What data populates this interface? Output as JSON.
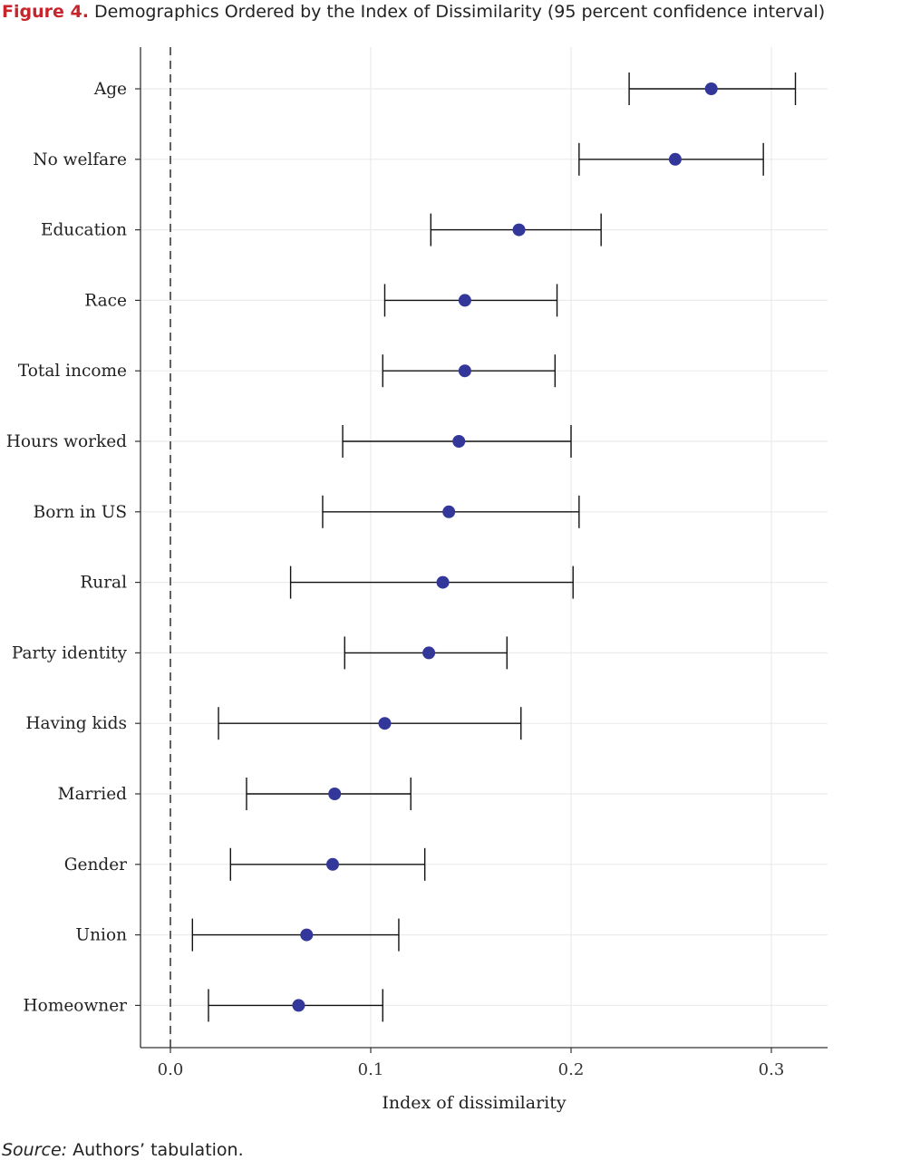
{
  "figure": {
    "label": "Figure 4.",
    "title": "Demographics Ordered by the Index of Dissimilarity (95 percent confidence interval)"
  },
  "source": {
    "label": "Source:",
    "text": "Authors’ tabulation."
  },
  "chart_data": {
    "type": "scatter",
    "subtype": "dot-with-error-bars",
    "title": "Demographics Ordered by the Index of Dissimilarity (95 percent confidence interval)",
    "xlabel": "Index of dissimilarity",
    "ylabel": "",
    "xlim": [
      -0.015,
      0.328
    ],
    "xticks": [
      0.0,
      0.1,
      0.2,
      0.3
    ],
    "xtick_labels": [
      "0.0",
      "0.1",
      "0.2",
      "0.3"
    ],
    "reference_line": {
      "x": 0.0,
      "style": "dashed"
    },
    "grid": true,
    "point_color": "#34379a",
    "series": [
      {
        "categories": [
          "Age",
          "No welfare",
          "Education",
          "Race",
          "Total income",
          "Hours worked",
          "Born in US",
          "Rural",
          "Party identity",
          "Having kids",
          "Married",
          "Gender",
          "Union",
          "Homeowner"
        ],
        "values": [
          0.27,
          0.252,
          0.174,
          0.147,
          0.147,
          0.144,
          0.139,
          0.136,
          0.129,
          0.107,
          0.082,
          0.081,
          0.068,
          0.064
        ],
        "lower": [
          0.229,
          0.204,
          0.13,
          0.107,
          0.106,
          0.086,
          0.076,
          0.06,
          0.087,
          0.024,
          0.038,
          0.03,
          0.011,
          0.019
        ],
        "upper": [
          0.312,
          0.296,
          0.215,
          0.193,
          0.192,
          0.2,
          0.204,
          0.201,
          0.168,
          0.175,
          0.12,
          0.127,
          0.114,
          0.106
        ]
      }
    ]
  }
}
